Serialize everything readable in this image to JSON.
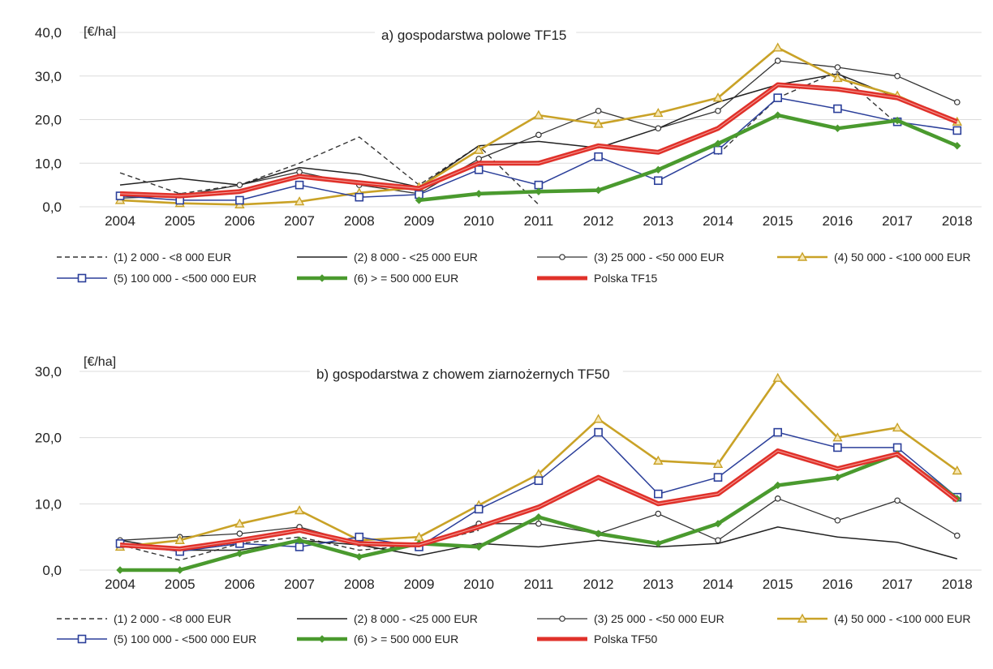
{
  "chart_data": [
    {
      "type": "line",
      "title": "a) gospodarstwa polowe TF15",
      "ylabel": "[€/ha]",
      "ylim": [
        0,
        40
      ],
      "yticks": [
        "0,0",
        "10,0",
        "20,0",
        "30,0",
        "40,0"
      ],
      "grid": true,
      "categories": [
        "2004",
        "2005",
        "2006",
        "2007",
        "2008",
        "2009",
        "2010",
        "2011",
        "2012",
        "2013",
        "2014",
        "2015",
        "2016",
        "2017",
        "2018"
      ],
      "series": [
        {
          "name": "(1) 2 000 - <8 000 EUR",
          "color": "#333333",
          "values": [
            7.8,
            3.0,
            5.0,
            10.0,
            16.0,
            5.0,
            14.0,
            0.5,
            null,
            null,
            12.0,
            25.0,
            31.0,
            19.0,
            null
          ]
        },
        {
          "name": "(2) 8 000 - <25 000 EUR",
          "color": "#222222",
          "values": [
            5.0,
            6.5,
            5.0,
            9.0,
            7.5,
            4.5,
            14.0,
            15.0,
            13.5,
            18.0,
            24.0,
            28.0,
            30.5,
            25.0,
            19.5
          ]
        },
        {
          "name": "(3) 25 000 - <50 000 EUR",
          "color": "#333333",
          "values": [
            2.0,
            2.5,
            5.0,
            8.0,
            5.0,
            3.0,
            11.0,
            16.5,
            22.0,
            18.0,
            22.0,
            33.5,
            32.0,
            30.0,
            24.0
          ]
        },
        {
          "name": "(4) 50 000 - <100 000 EUR",
          "color": "#c9a227",
          "values": [
            1.5,
            0.8,
            0.5,
            1.2,
            3.2,
            4.5,
            13.0,
            21.0,
            19.0,
            21.5,
            25.0,
            36.5,
            29.5,
            25.5,
            19.5
          ]
        },
        {
          "name": "(5) 100 000 - <500 000 EUR",
          "color": "#2b3f9a",
          "values": [
            2.5,
            1.5,
            1.5,
            5.0,
            2.2,
            2.8,
            8.5,
            5.0,
            11.5,
            6.0,
            13.0,
            25.0,
            22.5,
            19.5,
            17.5
          ]
        },
        {
          "name": "(6) > = 500 000 EUR",
          "color": "#4a9a2e",
          "values": [
            null,
            null,
            null,
            null,
            null,
            1.5,
            3.0,
            3.5,
            3.8,
            8.5,
            14.5,
            21.0,
            18.0,
            19.8,
            14.0
          ]
        },
        {
          "name": "Polska TF15",
          "color": "#e0312a",
          "values": [
            3.0,
            2.5,
            3.5,
            7.0,
            5.5,
            4.2,
            10.0,
            10.0,
            14.0,
            12.5,
            18.0,
            28.0,
            27.0,
            25.0,
            19.5
          ]
        }
      ]
    },
    {
      "type": "line",
      "title": "b) gospodarstwa z chowem ziarnożernych TF50",
      "ylabel": "[€/ha]",
      "ylim": [
        0,
        30
      ],
      "yticks": [
        "0,0",
        "10,0",
        "20,0",
        "30,0"
      ],
      "grid": true,
      "categories": [
        "2004",
        "2005",
        "2006",
        "2007",
        "2008",
        "2009",
        "2010",
        "2011",
        "2012",
        "2013",
        "2014",
        "2015",
        "2016",
        "2017",
        "2018"
      ],
      "series": [
        {
          "name": "(1) 2 000 - <8 000 EUR",
          "color": "#333333",
          "values": [
            3.8,
            1.5,
            4.0,
            5.0,
            3.0,
            3.8,
            6.0,
            null,
            null,
            null,
            null,
            null,
            null,
            null,
            null
          ]
        },
        {
          "name": "(2) 8 000 - <25 000 EUR",
          "color": "#222222",
          "values": [
            4.5,
            3.0,
            3.0,
            4.5,
            3.8,
            2.2,
            4.0,
            3.5,
            4.5,
            3.5,
            4.0,
            6.5,
            5.0,
            4.2,
            1.7
          ]
        },
        {
          "name": "(3) 25 000 - <50 000 EUR",
          "color": "#333333",
          "values": [
            4.5,
            5.0,
            5.5,
            6.5,
            4.0,
            3.5,
            7.0,
            7.0,
            5.5,
            8.5,
            4.5,
            10.8,
            7.5,
            10.5,
            5.2
          ]
        },
        {
          "name": "(4) 50 000 - <100 000 EUR",
          "color": "#c9a227",
          "values": [
            3.5,
            4.5,
            7.0,
            9.0,
            4.5,
            5.0,
            9.8,
            14.5,
            22.8,
            16.5,
            16.0,
            29.0,
            20.0,
            21.5,
            15.0
          ]
        },
        {
          "name": "(5) 100 000 - <500 000 EUR",
          "color": "#2b3f9a",
          "values": [
            4.0,
            2.8,
            4.0,
            3.5,
            5.0,
            3.5,
            9.2,
            13.5,
            20.8,
            11.5,
            14.0,
            20.8,
            18.5,
            18.5,
            11.0
          ]
        },
        {
          "name": "(6) > = 500 000 EUR",
          "color": "#4a9a2e",
          "values": [
            0.0,
            0.0,
            2.5,
            4.5,
            2.0,
            4.0,
            3.5,
            8.0,
            5.5,
            4.0,
            7.0,
            12.8,
            14.0,
            17.5,
            10.8
          ]
        },
        {
          "name": "Polska TF50",
          "color": "#e0312a",
          "values": [
            3.8,
            3.2,
            4.5,
            6.0,
            4.0,
            3.8,
            6.5,
            9.5,
            14.0,
            10.0,
            11.5,
            18.0,
            15.3,
            17.5,
            10.5
          ]
        }
      ]
    }
  ],
  "legend": {
    "a": [
      "(1) 2 000 - <8 000 EUR",
      "(2) 8 000 - <25 000 EUR",
      "(3) 25 000 - <50 000 EUR",
      "(4) 50 000 - <100 000 EUR",
      "(5) 100 000 - <500 000 EUR",
      "(6) > = 500 000 EUR",
      "Polska TF15"
    ],
    "b": [
      "(1) 2 000 - <8 000 EUR",
      "(2) 8 000 - <25 000 EUR",
      "(3) 25 000 - <50 000 EUR",
      "(4) 50 000 - <100 000 EUR",
      "(5) 100 000 - <500 000 EUR",
      "(6) > = 500 000 EUR",
      "Polska TF50"
    ]
  },
  "styles": {
    "line_styles": [
      "dashed",
      "solid",
      "solid-circle",
      "solid-triangle",
      "solid-square",
      "thick-diamond",
      "thick-double"
    ]
  }
}
